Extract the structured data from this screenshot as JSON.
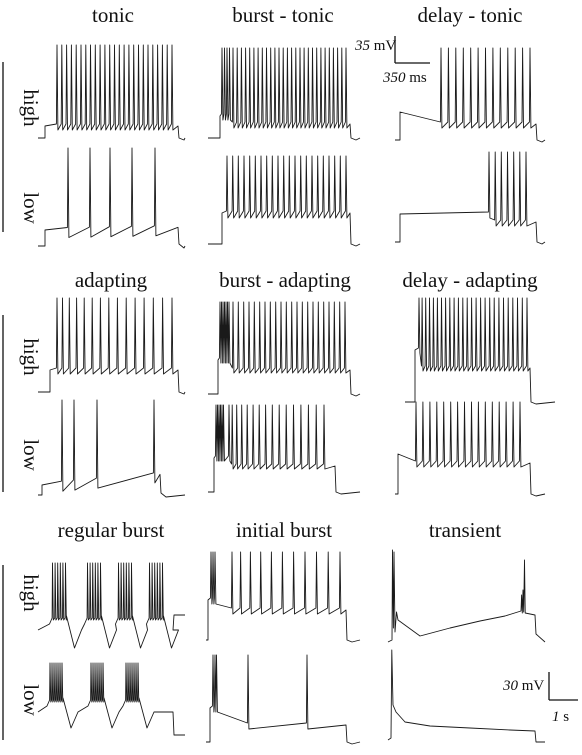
{
  "sections": [
    {
      "panels": [
        {
          "title": "tonic",
          "pattern": "tonic"
        },
        {
          "title": "burst - tonic",
          "pattern": "burst-tonic"
        },
        {
          "title": "delay - tonic",
          "pattern": "delay-tonic"
        }
      ]
    },
    {
      "panels": [
        {
          "title": "adapting",
          "pattern": "adapting"
        },
        {
          "title": "burst - adapting",
          "pattern": "burst-adapting"
        },
        {
          "title": "delay - adapting",
          "pattern": "delay-adapting"
        }
      ]
    },
    {
      "panels": [
        {
          "title": "regular burst",
          "pattern": "regular-burst"
        },
        {
          "title": "initial burst",
          "pattern": "initial-burst"
        },
        {
          "title": "transient",
          "pattern": "transient"
        }
      ]
    }
  ],
  "row_labels": {
    "high": "high",
    "low": "low"
  },
  "scalebar_top": {
    "voltage_value": "35",
    "voltage_unit": "mV",
    "time_value": "350",
    "time_unit": "ms"
  },
  "scalebar_bottom": {
    "voltage_value": "30",
    "voltage_unit": "mV",
    "time_value": "1",
    "time_unit": "s"
  },
  "trace_color": "#1a1a1a"
}
